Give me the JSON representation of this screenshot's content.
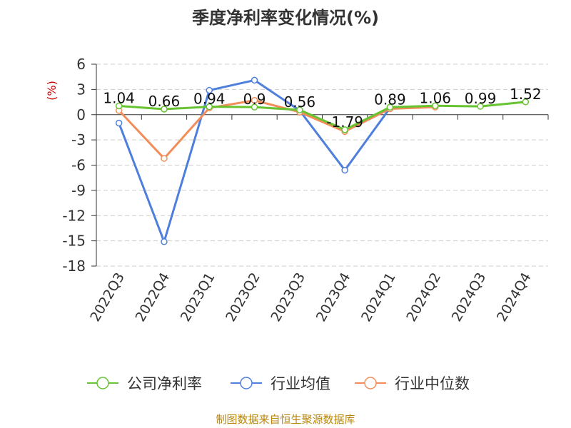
{
  "title": "季度净利率变化情况(%)",
  "footer": "制图数据来自恒生聚源数据库",
  "chart_data": {
    "type": "line",
    "title": "季度净利率变化情况(%)",
    "ylabel": "(%)",
    "xlabel": "",
    "categories": [
      "2022Q3",
      "2022Q4",
      "2023Q1",
      "2023Q2",
      "2023Q3",
      "2023Q4",
      "2024Q1",
      "2024Q2",
      "2024Q3",
      "2024Q4"
    ],
    "ylim": [
      -18,
      6
    ],
    "yticks": [
      6,
      3,
      0,
      -3,
      -6,
      -9,
      -12,
      -15,
      -18
    ],
    "ytick_labels": [
      "6",
      "3",
      "0",
      "-3",
      "-6",
      "-9",
      "-12",
      "-15",
      "-18"
    ],
    "grid": "horizontal dashed",
    "legend_position": "bottom",
    "series": [
      {
        "name": "公司净利率",
        "color": "#66c431",
        "show_labels": true,
        "values": [
          1.04,
          0.66,
          0.94,
          0.9,
          0.56,
          -1.79,
          0.89,
          1.06,
          0.99,
          1.52
        ],
        "labels": [
          "1.04",
          "0.66",
          "0.94",
          "0.9",
          "0.56",
          "-1.79",
          "0.89",
          "1.06",
          "0.99",
          "1.52"
        ]
      },
      {
        "name": "行业均值",
        "color": "#4e7fdc",
        "show_labels": false,
        "values": [
          -1.0,
          -15.1,
          2.9,
          4.1,
          0.5,
          -6.6,
          0.8,
          1.0,
          null,
          null
        ]
      },
      {
        "name": "行业中位数",
        "color": "#f28d5a",
        "show_labels": false,
        "values": [
          0.5,
          -5.2,
          0.8,
          1.7,
          0.3,
          -2.0,
          0.7,
          0.9,
          null,
          null
        ]
      }
    ]
  }
}
